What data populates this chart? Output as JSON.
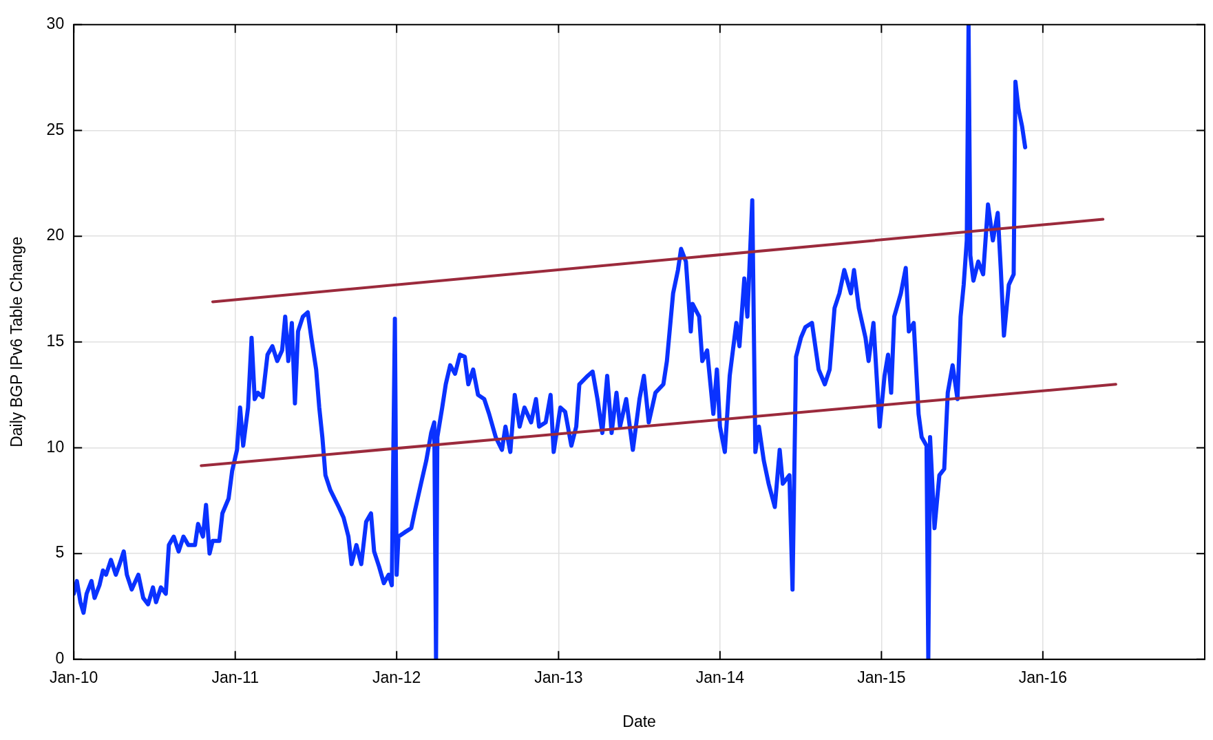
{
  "chart_data": {
    "type": "line",
    "xlabel": "Date",
    "ylabel": "Daily BGP IPv6 Table Change",
    "xlim": [
      "2010-01-01",
      "2017-01-01"
    ],
    "xticks": [
      {
        "value": "2010-01-01",
        "label": "Jan-10"
      },
      {
        "value": "2011-01-01",
        "label": "Jan-11"
      },
      {
        "value": "2012-01-01",
        "label": "Jan-12"
      },
      {
        "value": "2013-01-01",
        "label": "Jan-13"
      },
      {
        "value": "2014-01-01",
        "label": "Jan-14"
      },
      {
        "value": "2015-01-01",
        "label": "Jan-15"
      },
      {
        "value": "2016-01-01",
        "label": "Jan-16"
      }
    ],
    "ylim": [
      0,
      30
    ],
    "yticks": [
      0,
      5,
      10,
      15,
      20,
      25,
      30
    ],
    "grid": true,
    "legend": false,
    "marker": "none",
    "line_style": "solid",
    "series": [
      {
        "color": "#0a32ff",
        "x": [
          "2010-01-01",
          "2010-01-08",
          "2010-01-16",
          "2010-01-23",
          "2010-01-30",
          "2010-02-10",
          "2010-02-17",
          "2010-02-28",
          "2010-03-08",
          "2010-03-15",
          "2010-03-26",
          "2010-04-06",
          "2010-04-13",
          "2010-04-24",
          "2010-05-01",
          "2010-05-12",
          "2010-05-27",
          "2010-06-07",
          "2010-06-18",
          "2010-06-29",
          "2010-07-06",
          "2010-07-17",
          "2010-07-28",
          "2010-08-04",
          "2010-08-15",
          "2010-08-26",
          "2010-09-06",
          "2010-09-17",
          "2010-10-02",
          "2010-10-09",
          "2010-10-20",
          "2010-10-27",
          "2010-11-04",
          "2010-11-11",
          "2010-11-26",
          "2010-12-03",
          "2010-12-17",
          "2010-12-25",
          "2011-01-05",
          "2011-01-12",
          "2011-01-19",
          "2011-01-30",
          "2011-02-07",
          "2011-02-14",
          "2011-02-21",
          "2011-03-04",
          "2011-03-15",
          "2011-03-26",
          "2011-04-06",
          "2011-04-17",
          "2011-04-24",
          "2011-05-01",
          "2011-05-09",
          "2011-05-16",
          "2011-05-23",
          "2011-06-03",
          "2011-06-14",
          "2011-06-22",
          "2011-07-03",
          "2011-07-10",
          "2011-07-17",
          "2011-07-24",
          "2011-08-04",
          "2011-08-23",
          "2011-09-03",
          "2011-09-14",
          "2011-09-21",
          "2011-10-02",
          "2011-10-13",
          "2011-10-24",
          "2011-11-04",
          "2011-11-11",
          "2011-11-22",
          "2011-12-03",
          "2011-12-14",
          "2011-12-21",
          "2011-12-28",
          "2012-01-01",
          "2012-01-05",
          "2012-01-19",
          "2012-02-03",
          "2012-02-10",
          "2012-02-25",
          "2012-03-08",
          "2012-03-19",
          "2012-03-26",
          "2012-03-30",
          "2012-04-02",
          "2012-04-13",
          "2012-04-21",
          "2012-05-01",
          "2012-05-12",
          "2012-05-23",
          "2012-06-03",
          "2012-06-11",
          "2012-06-22",
          "2012-07-03",
          "2012-07-17",
          "2012-07-28",
          "2012-08-12",
          "2012-08-26",
          "2012-09-03",
          "2012-09-14",
          "2012-09-24",
          "2012-10-05",
          "2012-10-16",
          "2012-10-31",
          "2012-11-11",
          "2012-11-18",
          "2012-12-03",
          "2012-12-14",
          "2012-12-21",
          "2013-01-05",
          "2013-01-16",
          "2013-01-30",
          "2013-02-10",
          "2013-02-17",
          "2013-03-08",
          "2013-03-19",
          "2013-03-30",
          "2013-04-10",
          "2013-04-21",
          "2013-05-01",
          "2013-05-12",
          "2013-05-20",
          "2013-06-03",
          "2013-06-18",
          "2013-07-03",
          "2013-07-13",
          "2013-07-24",
          "2013-08-08",
          "2013-08-26",
          "2013-09-03",
          "2013-09-17",
          "2013-09-28",
          "2013-10-05",
          "2013-10-16",
          "2013-10-27",
          "2013-10-31",
          "2013-11-15",
          "2013-11-22",
          "2013-12-03",
          "2013-12-17",
          "2013-12-25",
          "2014-01-01",
          "2014-01-12",
          "2014-01-23",
          "2014-02-07",
          "2014-02-14",
          "2014-02-25",
          "2014-03-04",
          "2014-03-15",
          "2014-03-22",
          "2014-03-30",
          "2014-04-10",
          "2014-04-21",
          "2014-05-05",
          "2014-05-16",
          "2014-05-23",
          "2014-06-07",
          "2014-06-14",
          "2014-06-22",
          "2014-07-03",
          "2014-07-13",
          "2014-07-28",
          "2014-08-12",
          "2014-08-26",
          "2014-09-06",
          "2014-09-17",
          "2014-09-28",
          "2014-10-09",
          "2014-10-24",
          "2014-10-31",
          "2014-11-11",
          "2014-11-26",
          "2014-12-03",
          "2014-12-14",
          "2014-12-28",
          "2015-01-08",
          "2015-01-16",
          "2015-01-23",
          "2015-01-30",
          "2015-02-14",
          "2015-02-25",
          "2015-03-04",
          "2015-03-15",
          "2015-03-26",
          "2015-04-02",
          "2015-04-13",
          "2015-04-17",
          "2015-04-21",
          "2015-05-01",
          "2015-05-12",
          "2015-05-23",
          "2015-05-31",
          "2015-06-11",
          "2015-06-22",
          "2015-06-29",
          "2015-07-06",
          "2015-07-13",
          "2015-07-17",
          "2015-07-21",
          "2015-07-28",
          "2015-08-08",
          "2015-08-19",
          "2015-08-30",
          "2015-09-10",
          "2015-09-21",
          "2015-09-28",
          "2015-10-05",
          "2015-10-16",
          "2015-10-27",
          "2015-10-31",
          "2015-11-07",
          "2015-11-15",
          "2015-11-22"
        ],
        "values": [
          3.1,
          3.7,
          2.7,
          2.2,
          3.1,
          3.7,
          2.9,
          3.5,
          4.2,
          4.0,
          4.7,
          4.0,
          4.4,
          5.1,
          4.0,
          3.3,
          4.0,
          2.9,
          2.6,
          3.4,
          2.7,
          3.4,
          3.1,
          5.4,
          5.8,
          5.1,
          5.8,
          5.4,
          5.4,
          6.4,
          5.8,
          7.3,
          5.0,
          5.6,
          5.6,
          6.9,
          7.6,
          8.9,
          9.9,
          11.9,
          10.1,
          11.9,
          15.2,
          12.3,
          12.6,
          12.4,
          14.4,
          14.8,
          14.1,
          14.6,
          16.2,
          14.1,
          15.9,
          12.1,
          15.5,
          16.2,
          16.4,
          15.2,
          13.7,
          11.9,
          10.5,
          8.7,
          8.0,
          7.2,
          6.7,
          5.8,
          4.5,
          5.4,
          4.5,
          6.5,
          6.9,
          5.1,
          4.4,
          3.6,
          4.0,
          3.5,
          16.1,
          4.0,
          5.8,
          6.0,
          6.2,
          6.9,
          8.3,
          9.4,
          10.7,
          11.2,
          0,
          10.5,
          11.9,
          13.0,
          13.9,
          13.5,
          14.4,
          14.3,
          13.0,
          13.7,
          12.5,
          12.3,
          11.6,
          10.5,
          9.9,
          11.0,
          9.8,
          12.5,
          11.0,
          11.9,
          11.2,
          12.3,
          11.0,
          11.2,
          12.5,
          9.8,
          11.9,
          11.7,
          10.1,
          11.0,
          13.0,
          13.4,
          13.6,
          12.3,
          10.7,
          13.4,
          10.7,
          12.6,
          11.0,
          12.3,
          9.9,
          12.3,
          13.4,
          11.2,
          12.6,
          13.0,
          14.1,
          17.3,
          18.4,
          19.4,
          18.8,
          15.5,
          16.8,
          16.2,
          14.1,
          14.6,
          11.6,
          13.7,
          11.0,
          9.8,
          13.4,
          15.9,
          14.8,
          18.0,
          16.2,
          21.7,
          9.8,
          11.0,
          9.4,
          8.3,
          7.2,
          9.9,
          8.3,
          8.7,
          3.3,
          14.3,
          15.2,
          15.7,
          15.9,
          13.7,
          13.0,
          13.7,
          16.6,
          17.3,
          18.4,
          17.3,
          18.4,
          16.6,
          15.2,
          14.1,
          15.9,
          11.0,
          13.4,
          14.4,
          12.6,
          16.2,
          17.3,
          18.5,
          15.5,
          15.9,
          11.6,
          10.5,
          10.1,
          0,
          10.5,
          6.2,
          8.7,
          9.0,
          12.6,
          13.9,
          12.3,
          16.2,
          17.7,
          19.8,
          30,
          19.1,
          17.9,
          18.8,
          18.2,
          21.5,
          19.8,
          21.1,
          18.4,
          15.3,
          17.7,
          18.2,
          27.3,
          26.0,
          25.2,
          24.2
        ]
      },
      {
        "type": "line",
        "color": "#9b2a3c",
        "x": [
          "2010-11-11",
          "2016-05-16"
        ],
        "values": [
          16.9,
          20.8
        ]
      },
      {
        "type": "line",
        "color": "#9b2a3c",
        "x": [
          "2010-10-16",
          "2016-06-14"
        ],
        "values": [
          9.15,
          13.0
        ]
      }
    ]
  }
}
